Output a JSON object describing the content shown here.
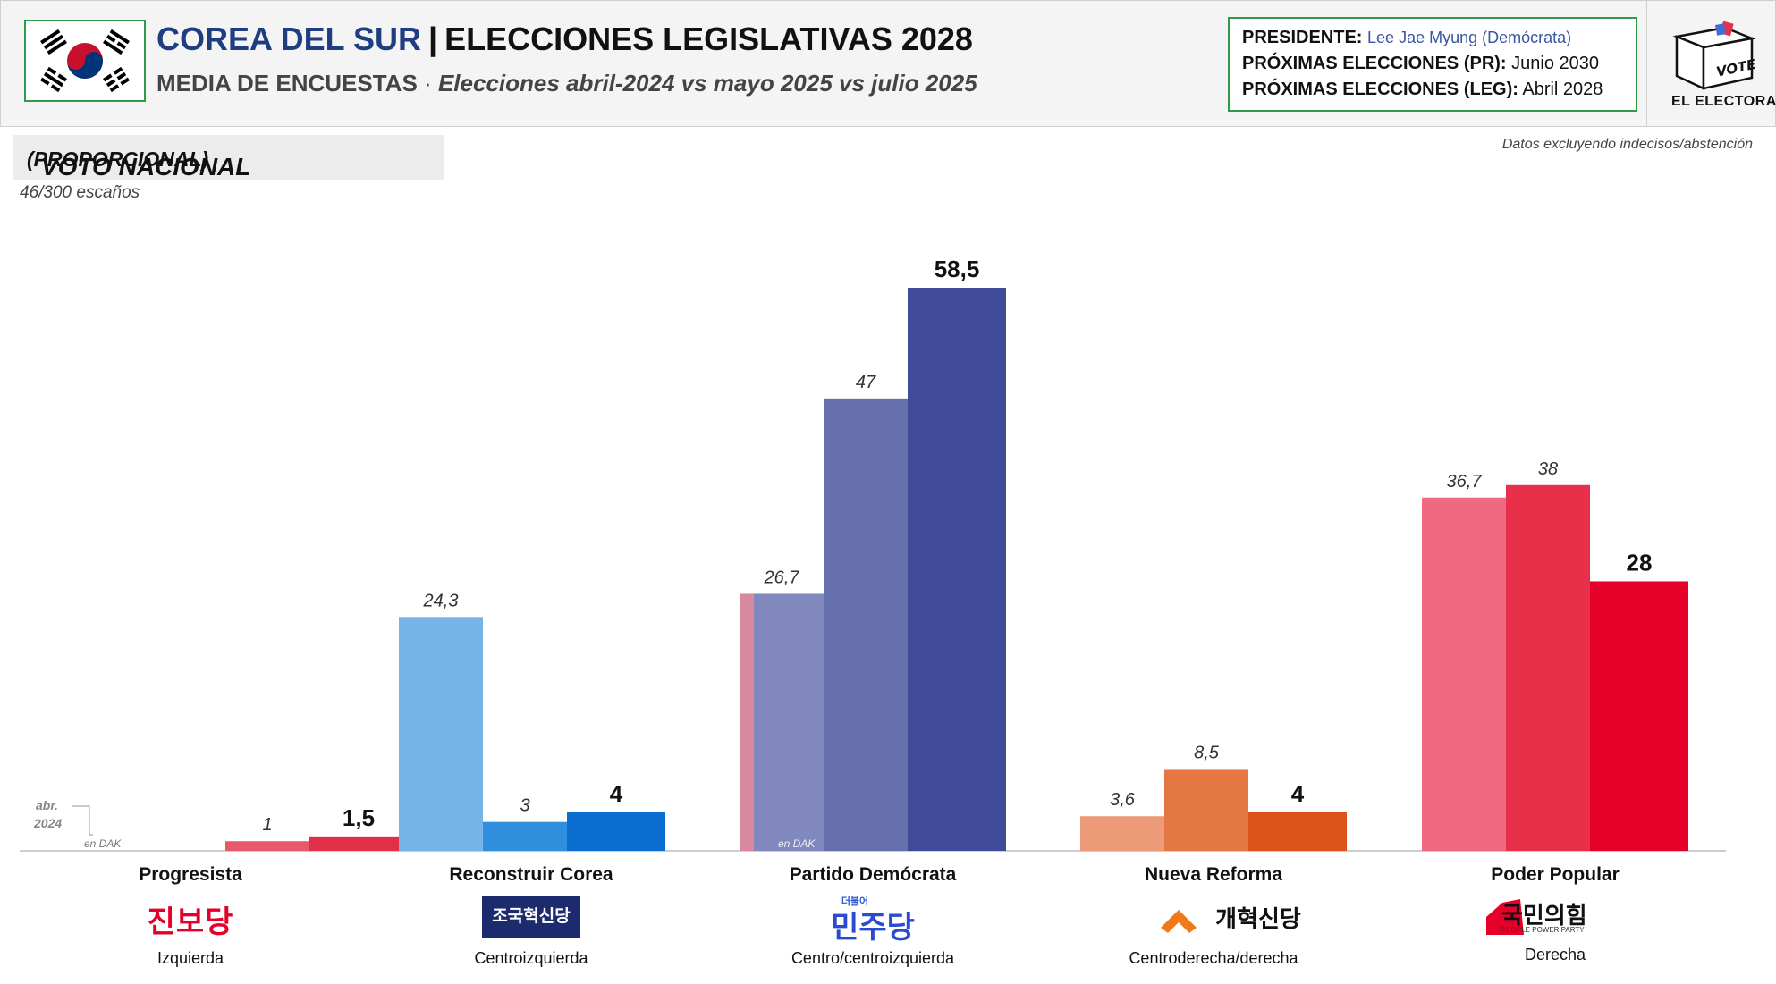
{
  "header": {
    "country": "COREA DEL SUR",
    "separator": "|",
    "election": "ELECCIONES LEGISLATIVAS 2028",
    "subtitle_bold": "MEDIA DE ENCUESTAS",
    "subtitle_dot": "·",
    "subtitle_italic": "Elecciones abril-2024 vs mayo 2025 vs julio 2025"
  },
  "info": {
    "president_label": "PRESIDENTE:",
    "president_value": "Lee Jae Myung (Demócrata)",
    "next_pr_label": "PRÓXIMAS ELECCIONES (PR):",
    "next_pr_value": "Junio 2030",
    "next_leg_label": "PRÓXIMAS ELECCIONES (LEG):",
    "next_leg_value": "Abril 2028"
  },
  "logo": {
    "vote": "VOTE",
    "name": "EL ELECTORAL"
  },
  "section": {
    "title": "VOTO NACIONAL",
    "title_sub": "(PROPORCIONAL)",
    "seats": "46/300 escaños"
  },
  "note": "Datos excluyendo indecisos/abstención",
  "colors": {
    "red_series": [
      "#ef6a80",
      "#e8304a",
      "#e40028"
    ],
    "logo_red": "#e40028",
    "logo_navy": "#1c2a6e",
    "logo_orange": "#f07a1a"
  },
  "chart_data": {
    "type": "bar",
    "ylim": [
      0,
      60
    ],
    "categories": [
      "Progresista",
      "Reconstruir Corea",
      "Partido Demócrata",
      "Nueva Reforma",
      "Poder Popular"
    ],
    "ideologies": [
      "Izquierda",
      "Centroizquierda",
      "Centro/centroizquierda",
      "Centroderecha/derecha",
      "Derecha"
    ],
    "logo_texts": [
      "진보당",
      "조국혁신당",
      "민주당",
      "개혁신당",
      "국민의힘"
    ],
    "logo_small": [
      "",
      "",
      "더불어",
      "",
      "PEOPLE POWER PARTY"
    ],
    "groups": [
      {
        "bars": [
          {
            "value": 1,
            "label": "1",
            "color": "#e8576a",
            "bold": false
          },
          {
            "value": 1.5,
            "label": "1,5",
            "color": "#e03048",
            "bold": true
          }
        ],
        "slots": [
          1,
          2
        ]
      },
      {
        "bars": [
          {
            "value": 24.3,
            "label": "24,3",
            "color": "#76b3e6",
            "bold": false
          },
          {
            "value": 3,
            "label": "3",
            "color": "#2f8fdc",
            "bold": false
          },
          {
            "value": 4,
            "label": "4",
            "color": "#0a6fd0",
            "bold": true
          }
        ],
        "slots": [
          0,
          1,
          2
        ]
      },
      {
        "bars": [
          {
            "value": 26.7,
            "label": "26,7",
            "color": "#8088bd",
            "bold": false
          },
          {
            "value": 47,
            "label": "47",
            "color": "#6670ad",
            "bold": false
          },
          {
            "value": 58.5,
            "label": "58,5",
            "color": "#3f4a99",
            "bold": true
          }
        ],
        "slots": [
          0,
          1,
          2
        ]
      },
      {
        "bars": [
          {
            "value": 3.6,
            "label": "3,6",
            "color": "#ec9a78",
            "bold": false
          },
          {
            "value": 8.5,
            "label": "8,5",
            "color": "#e57842",
            "bold": false
          },
          {
            "value": 4,
            "label": "4",
            "color": "#dd5418",
            "bold": true
          }
        ],
        "slots": [
          0,
          1,
          2
        ]
      },
      {
        "bars": [
          {
            "value": 36.7,
            "label": "36,7",
            "color": "#ef6a80",
            "bold": false
          },
          {
            "value": 38,
            "label": "38",
            "color": "#e8304a",
            "bold": false
          },
          {
            "value": 28,
            "label": "28",
            "color": "#e40028",
            "bold": true
          }
        ],
        "slots": [
          0,
          1,
          2
        ]
      }
    ],
    "annotations": {
      "abr_line1": "abr.",
      "abr_line2": "2024",
      "en_dak": "en DAK"
    }
  }
}
